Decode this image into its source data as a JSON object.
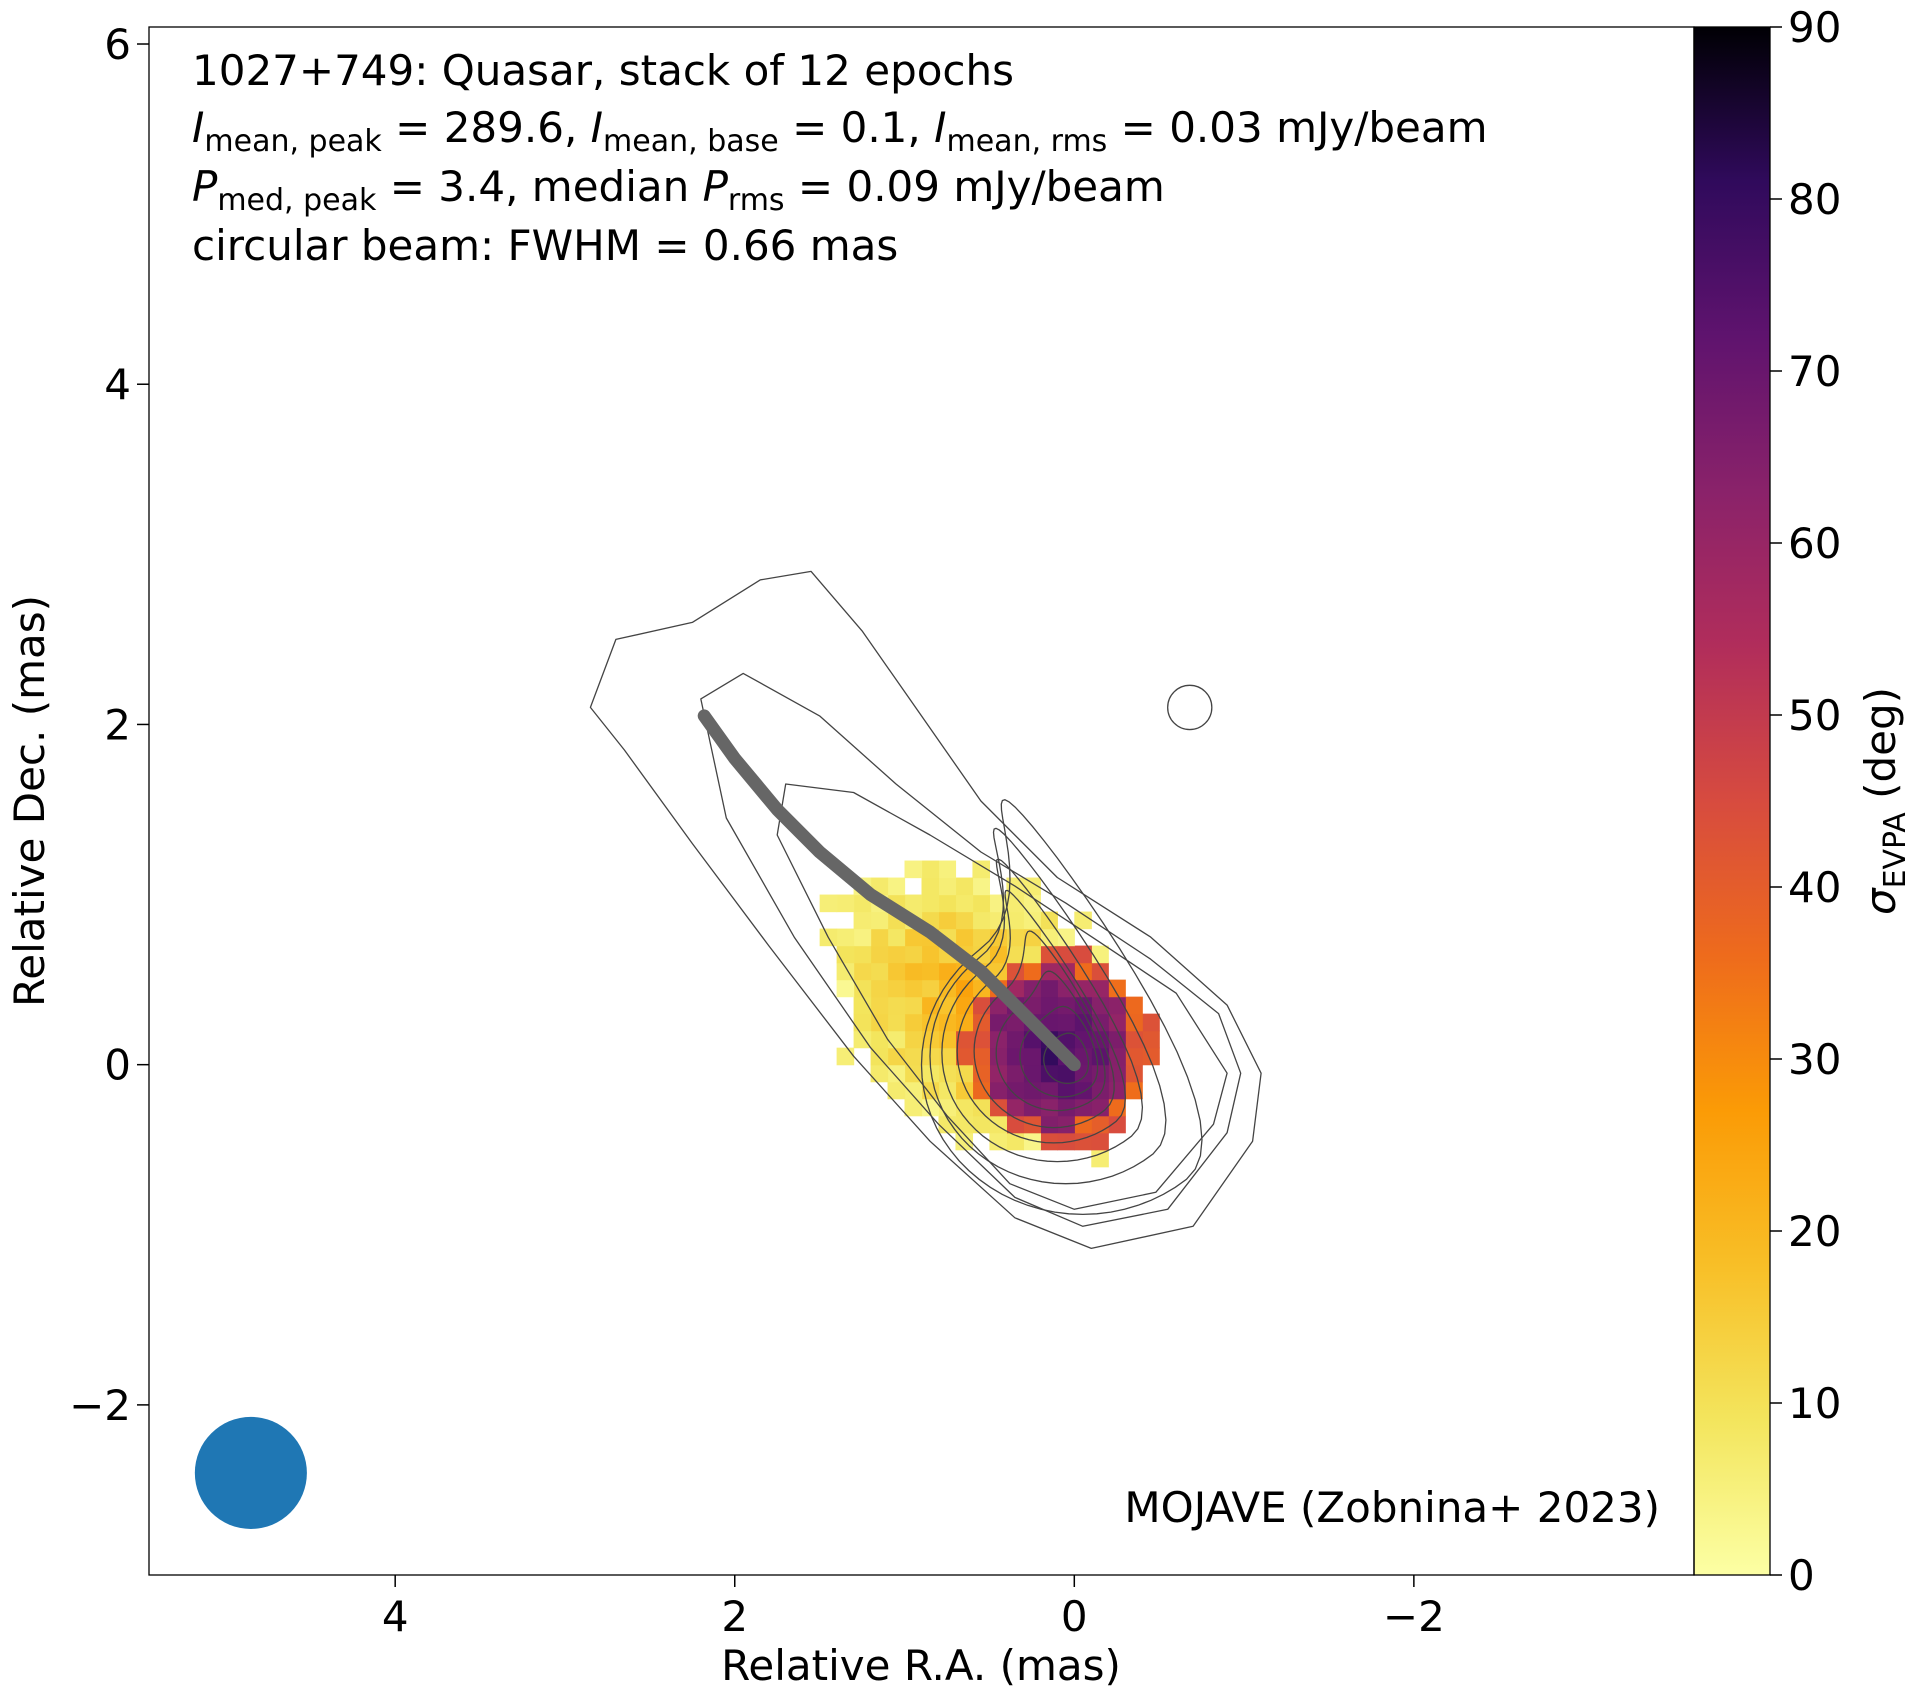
{
  "chart_data": {
    "type": "heatmap",
    "title_lines": {
      "line1": "1027+749: Quasar, stack of 12 epochs",
      "line2": {
        "i_sym_1": "I",
        "i_sub_1": "mean, peak",
        "i_val_1": " = 289.6, ",
        "i_sym_2": "I",
        "i_sub_2": "mean, base",
        "i_val_2": " = 0.1, ",
        "i_sym_3": "I",
        "i_sub_3": "mean, rms",
        "i_val_3": " = 0.03 mJy/beam"
      },
      "line3": {
        "p_sym_1": "P",
        "p_sub_1": "med, peak",
        "p_val_1": " = 3.4, median ",
        "p_sym_2": "P",
        "p_sub_2": "rms",
        "p_val_2": " = 0.09 mJy/beam"
      },
      "line4": "circular beam: FWHM = 0.66 mas"
    },
    "credit": "MOJAVE (Zobnina+ 2023)",
    "xlabel": "Relative R.A. (mas)",
    "ylabel": "Relative Dec. (mas)",
    "xlim": [
      5.45,
      -3.65
    ],
    "ylim": [
      -3.0,
      6.1
    ],
    "x_ticks": [
      4,
      2,
      0,
      -2
    ],
    "x_tick_labels": [
      "4",
      "2",
      "0",
      "−2"
    ],
    "y_ticks": [
      -2,
      0,
      2,
      4,
      6
    ],
    "y_tick_labels": [
      "−2",
      "0",
      "2",
      "4",
      "6"
    ],
    "colorbar": {
      "label_symbol": "σ",
      "label_sub": "EVPA",
      "label_unit": " (deg)",
      "range": [
        0,
        90
      ],
      "ticks": [
        0,
        10,
        20,
        30,
        40,
        50,
        60,
        70,
        80,
        90
      ],
      "tick_labels": [
        "0",
        "10",
        "20",
        "30",
        "40",
        "50",
        "60",
        "70",
        "80",
        "90"
      ],
      "colormap": "inferno_r"
    },
    "beam": {
      "fwhm_mas": 0.66,
      "center": [
        4.85,
        -2.4
      ],
      "color": "#1f77b4"
    },
    "core": [
      0,
      0
    ],
    "pixel_size_mas": 0.1,
    "polarization_map": {
      "center": [
        0.1,
        0.1
      ],
      "radius": [
        0.55,
        0.58
      ],
      "peak": 80,
      "halo": 40,
      "region_center": [
        0.5,
        0.3
      ],
      "region_radius": [
        1.05,
        0.72
      ],
      "region_tilt_deg": 35
    },
    "jet_ridgeline": {
      "color": "#666666",
      "points": [
        [
          2.18,
          2.05
        ],
        [
          2.0,
          1.8
        ],
        [
          1.75,
          1.5
        ],
        [
          1.5,
          1.25
        ],
        [
          1.2,
          1.0
        ],
        [
          0.85,
          0.78
        ],
        [
          0.55,
          0.55
        ],
        [
          0.25,
          0.25
        ],
        [
          0.0,
          0.0
        ]
      ]
    },
    "contours": {
      "color": "#444444",
      "levels": [
        {
          "cx": -0.05,
          "cy": 0.0,
          "a": 0.95,
          "b": 0.88,
          "offset": 1.5
        },
        {
          "cx": 0.05,
          "cy": 0.05,
          "a": 0.8,
          "b": 0.75,
          "offset": 1.3
        },
        {
          "cx": 0.1,
          "cy": 0.07,
          "a": 0.68,
          "b": 0.64,
          "offset": 1.1
        },
        {
          "cx": 0.12,
          "cy": 0.08,
          "a": 0.57,
          "b": 0.54,
          "offset": 0.9
        },
        {
          "cx": 0.12,
          "cy": 0.08,
          "a": 0.47,
          "b": 0.45,
          "offset": 0.6
        },
        {
          "cx": 0.1,
          "cy": 0.07,
          "a": 0.36,
          "b": 0.34,
          "offset": 0.35
        },
        {
          "cx": 0.07,
          "cy": 0.05,
          "a": 0.25,
          "b": 0.24,
          "offset": 0.15
        },
        {
          "cx": 0.04,
          "cy": 0.03,
          "a": 0.14,
          "b": 0.14,
          "offset": 0.05
        }
      ],
      "outer_jet_loops": [
        [
          [
            -1.1,
            -0.05
          ],
          [
            -1.05,
            -0.45
          ],
          [
            -0.7,
            -0.95
          ],
          [
            -0.1,
            -1.08
          ],
          [
            0.35,
            -0.9
          ],
          [
            0.85,
            -0.45
          ],
          [
            1.3,
            0.05
          ],
          [
            1.8,
            0.7
          ],
          [
            2.25,
            1.3
          ],
          [
            2.65,
            1.85
          ],
          [
            2.85,
            2.1
          ],
          [
            2.7,
            2.5
          ],
          [
            2.25,
            2.6
          ],
          [
            1.85,
            2.85
          ],
          [
            1.55,
            2.9
          ],
          [
            1.25,
            2.55
          ],
          [
            0.9,
            2.05
          ],
          [
            0.55,
            1.55
          ],
          [
            0.1,
            1.1
          ],
          [
            -0.45,
            0.75
          ],
          [
            -0.9,
            0.35
          ]
        ],
        [
          [
            -0.98,
            -0.05
          ],
          [
            -0.9,
            -0.4
          ],
          [
            -0.55,
            -0.85
          ],
          [
            -0.05,
            -0.95
          ],
          [
            0.35,
            -0.78
          ],
          [
            0.8,
            -0.35
          ],
          [
            1.2,
            0.1
          ],
          [
            1.65,
            0.75
          ],
          [
            2.05,
            1.45
          ],
          [
            2.2,
            2.15
          ],
          [
            1.95,
            2.3
          ],
          [
            1.5,
            2.05
          ],
          [
            1.05,
            1.65
          ],
          [
            0.55,
            1.25
          ],
          [
            0.05,
            0.95
          ],
          [
            -0.45,
            0.62
          ],
          [
            -0.85,
            0.3
          ]
        ],
        [
          [
            -0.9,
            -0.05
          ],
          [
            -0.82,
            -0.35
          ],
          [
            -0.48,
            -0.75
          ],
          [
            0.0,
            -0.85
          ],
          [
            0.38,
            -0.7
          ],
          [
            0.75,
            -0.3
          ],
          [
            1.1,
            0.15
          ],
          [
            1.45,
            0.75
          ],
          [
            1.75,
            1.35
          ],
          [
            1.7,
            1.65
          ],
          [
            1.3,
            1.6
          ],
          [
            0.85,
            1.35
          ],
          [
            0.35,
            1.05
          ],
          [
            -0.15,
            0.72
          ],
          [
            -0.6,
            0.42
          ]
        ]
      ],
      "blob": {
        "cx": -0.68,
        "cy": 2.1,
        "r": 0.13
      }
    }
  }
}
